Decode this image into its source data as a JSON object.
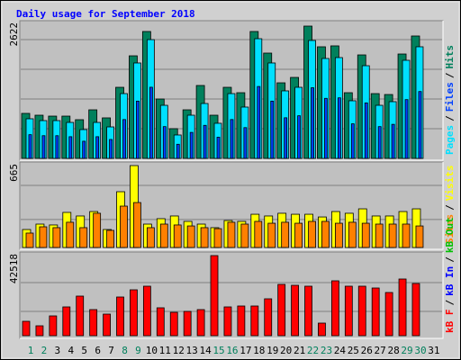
{
  "title": "Daily usage for September 2018",
  "legend_separator": "/",
  "day_colors": [
    "#00805c",
    "#00805c",
    "#000000",
    "#000000",
    "#000000",
    "#000000",
    "#000000",
    "#00805c",
    "#00805c",
    "#000000",
    "#000000",
    "#000000",
    "#000000",
    "#000000",
    "#00805c",
    "#00805c",
    "#000000",
    "#000000",
    "#000000",
    "#000000",
    "#000000",
    "#00805c",
    "#00805c",
    "#000000",
    "#000000",
    "#000000",
    "#000000",
    "#000000",
    "#00805c",
    "#00805c",
    "#000000"
  ],
  "chart_data": [
    {
      "type": "bar",
      "categories": [
        "1",
        "2",
        "3",
        "4",
        "5",
        "6",
        "7",
        "8",
        "9",
        "10",
        "11",
        "12",
        "13",
        "14",
        "15",
        "16",
        "17",
        "18",
        "19",
        "20",
        "21",
        "22",
        "23",
        "24",
        "25",
        "26",
        "27",
        "28",
        "29",
        "30",
        "31"
      ],
      "ylim": [
        0,
        2622
      ],
      "yticks": [
        2622
      ],
      "grid_lines": [
        589,
        1177,
        1766,
        2354
      ],
      "series": [
        {
          "name": "Pages",
          "color": "#00e0ff",
          "values": [
            785,
            749,
            749,
            713,
            571,
            713,
            624,
            1284,
            1891,
            2354,
            1052,
            464,
            856,
            1088,
            696,
            1284,
            1017,
            2372,
            1891,
            1338,
            1409,
            2337,
            1980,
            1998,
            1142,
            1837,
            1052,
            1124,
            1944,
            2212,
            null
          ]
        },
        {
          "name": "Files",
          "color": "#0040ff",
          "values": [
            470,
            450,
            450,
            430,
            340,
            430,
            375,
            770,
            1135,
            1410,
            630,
            280,
            515,
            655,
            420,
            770,
            610,
            1425,
            1135,
            805,
            845,
            1400,
            1190,
            1200,
            685,
            1100,
            630,
            675,
            1165,
            1325,
            null
          ]
        },
        {
          "name": "Hits",
          "color": "#00805c",
          "values": [
            892,
            856,
            838,
            838,
            767,
            963,
            803,
            1409,
            2033,
            2515,
            1177,
            589,
            963,
            1445,
            856,
            1409,
            1302,
            2515,
            2087,
            1498,
            1605,
            2622,
            2212,
            2230,
            1302,
            2051,
            1284,
            1266,
            2069,
            2426,
            null
          ]
        }
      ]
    },
    {
      "type": "bar",
      "ylim": [
        0,
        665
      ],
      "yticks": [
        665
      ],
      "grid_lines": [
        227,
        504
      ],
      "series": [
        {
          "name": "Sites",
          "color": "#ff8000",
          "values": [
            117,
            168,
            161,
            205,
            161,
            278,
            139,
            336,
            365,
            161,
            190,
            183,
            175,
            161,
            153,
            205,
            190,
            212,
            197,
            205,
            197,
            212,
            212,
            197,
            205,
            197,
            190,
            190,
            190,
            175,
            null
          ]
        },
        {
          "name": "Visits",
          "color": "#ffff00",
          "values": [
            146,
            190,
            183,
            285,
            256,
            292,
            146,
            453,
            665,
            190,
            234,
            256,
            212,
            190,
            161,
            219,
            212,
            270,
            256,
            278,
            270,
            270,
            248,
            292,
            278,
            314,
            256,
            256,
            292,
            314,
            null
          ]
        }
      ]
    },
    {
      "type": "bar",
      "ylim": [
        0,
        42518
      ],
      "yticks": [
        42518
      ],
      "grid_lines": [
        12899,
        28186
      ],
      "series": [
        {
          "name": "kB F",
          "color": "#ff0000",
          "values": [
            7644,
            5255,
            10510,
            15287,
            21020,
            13854,
            11465,
            20542,
            24364,
            26275,
            14810,
            12421,
            12899,
            13854,
            42518,
            15287,
            15765,
            15765,
            19587,
            27230,
            26752,
            26275,
            6688,
            29141,
            26275,
            26275,
            25320,
            22931,
            30097,
            27708,
            null
          ]
        }
      ],
      "legend_extra": [
        {
          "name": "kB In",
          "color": "#0000ff"
        },
        {
          "name": "kB Out",
          "color": "#00c000"
        }
      ]
    }
  ]
}
